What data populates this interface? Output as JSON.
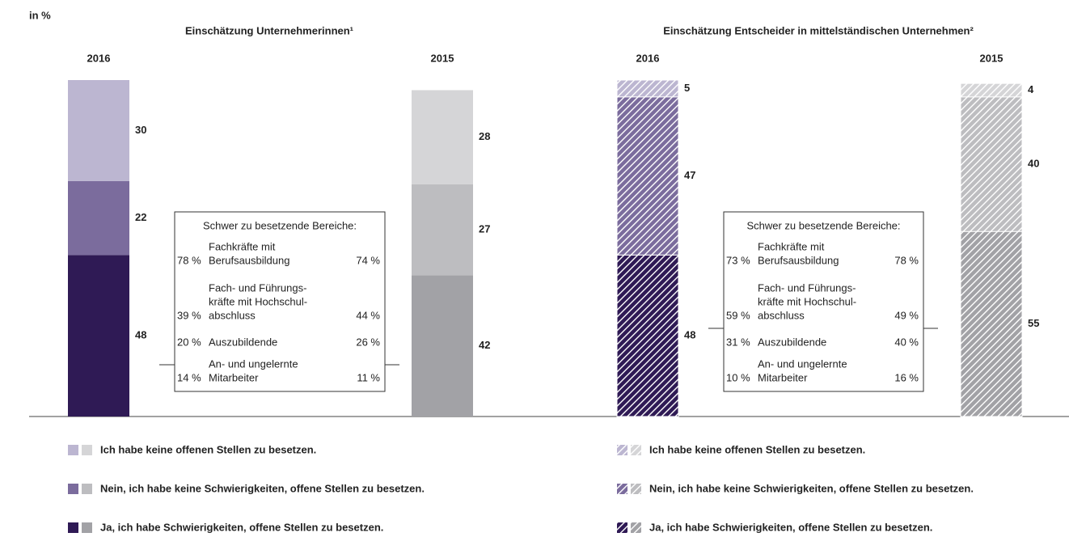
{
  "unit": "in %",
  "chart_data": [
    {
      "type": "bar",
      "stacked": true,
      "pattern": "solid",
      "title": "Einschätzung Unternehmerinnen¹",
      "categories": [
        "2016",
        "2015"
      ],
      "ylim": [
        0,
        100
      ],
      "series": [
        {
          "name": "Ich habe keine offenen Stellen zu besetzen.",
          "colors": [
            "#bcb6d1",
            "#d5d5d7"
          ],
          "values": [
            30,
            28
          ]
        },
        {
          "name": "Nein, ich habe keine Schwierigkeiten, offene Stellen zu besetzen.",
          "colors": [
            "#7b6c9d",
            "#bdbdc0"
          ],
          "values": [
            22,
            27
          ]
        },
        {
          "name": "Ja, ich habe Schwierigkeiten, offene Stellen zu besetzen.",
          "colors": [
            "#2f1a55",
            "#a2a2a6"
          ],
          "values": [
            48,
            42
          ]
        }
      ],
      "box": {
        "title": "Schwer zu besetzende Bereiche:",
        "rows": [
          {
            "left": "78 %",
            "label": [
              "Fachkräfte mit",
              "Berufsausbildung"
            ],
            "right": "74 %"
          },
          {
            "left": "39 %",
            "label": [
              "Fach- und Führungs-",
              "kräfte mit Hochschul-",
              "abschluss"
            ],
            "right": "44 %"
          },
          {
            "left": "20 %",
            "label": [
              "Auszubildende"
            ],
            "right": "26 %"
          },
          {
            "left": "14 %",
            "label": [
              "An- und ungelernte",
              "Mitarbeiter"
            ],
            "right": "11 %"
          }
        ]
      }
    },
    {
      "type": "bar",
      "stacked": true,
      "pattern": "hatched",
      "title": "Einschätzung Entscheider in mittelständischen Unternehmen²",
      "categories": [
        "2016",
        "2015"
      ],
      "ylim": [
        0,
        100
      ],
      "series": [
        {
          "name": "Ich habe keine offenen Stellen zu besetzen.",
          "colors": [
            "#bcb6d1",
            "#d5d5d7"
          ],
          "values": [
            5,
            4
          ]
        },
        {
          "name": "Nein, ich habe keine Schwierigkeiten, offene Stellen zu besetzen.",
          "colors": [
            "#7b6c9d",
            "#bdbdc0"
          ],
          "values": [
            47,
            40
          ]
        },
        {
          "name": "Ja, ich habe Schwierigkeiten, offene Stellen zu besetzen.",
          "colors": [
            "#2f1a55",
            "#a2a2a6"
          ],
          "values": [
            48,
            55
          ]
        }
      ],
      "box": {
        "title": "Schwer zu besetzende Bereiche:",
        "rows": [
          {
            "left": "73 %",
            "label": [
              "Fachkräfte mit",
              "Berufsausbildung"
            ],
            "right": "78 %"
          },
          {
            "left": "59 %",
            "label": [
              "Fach- und Führungs-",
              "kräfte mit Hochschul-",
              "abschluss"
            ],
            "right": "49 %"
          },
          {
            "left": "31 %",
            "label": [
              "Auszubildende"
            ],
            "right": "40 %"
          },
          {
            "left": "10 %",
            "label": [
              "An- und ungelernte",
              "Mitarbeiter"
            ],
            "right": "16 %"
          }
        ]
      }
    }
  ]
}
